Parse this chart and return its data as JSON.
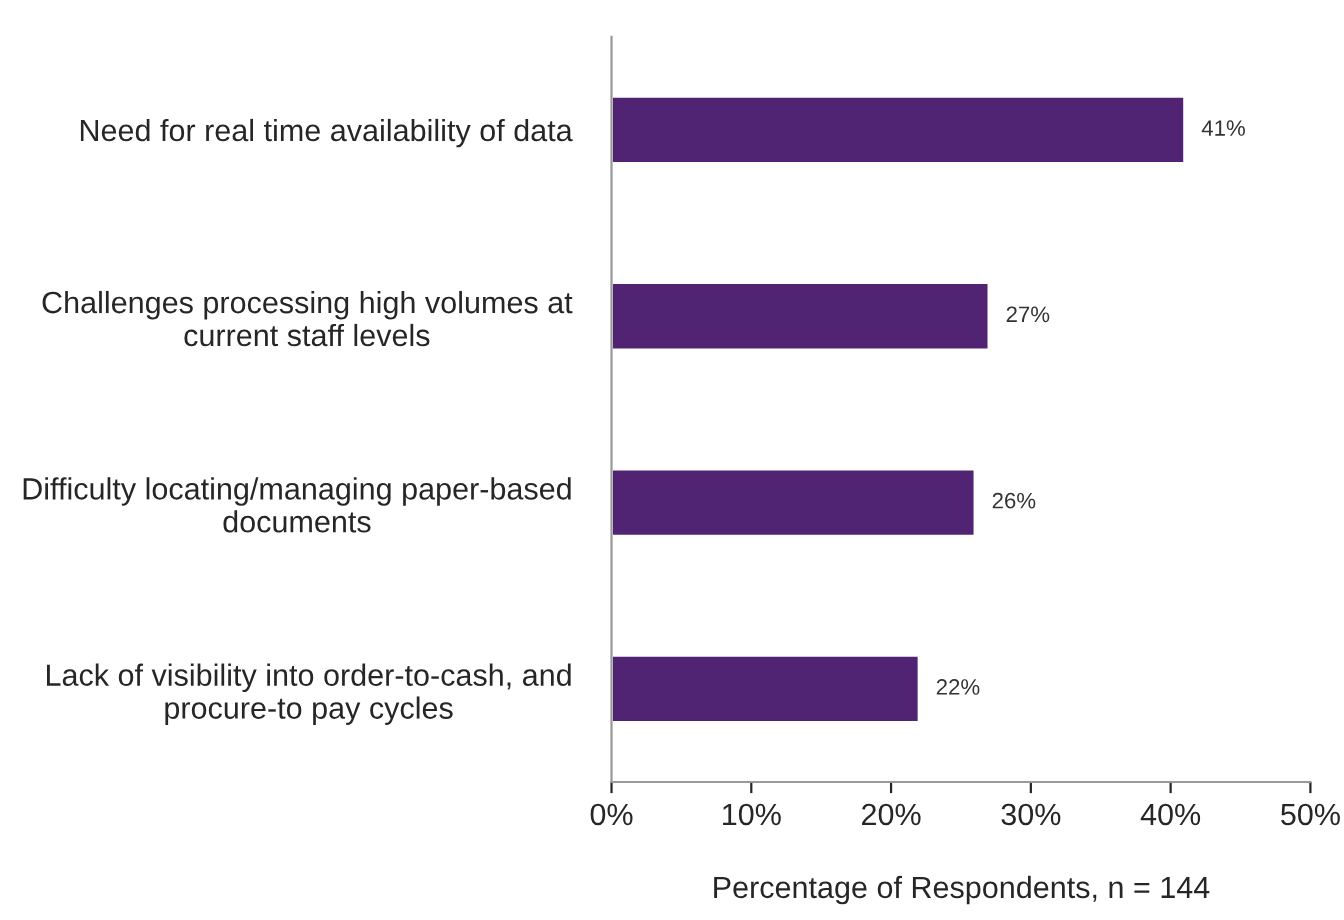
{
  "chart_data": {
    "type": "bar",
    "orientation": "horizontal",
    "xlabel": "Percentage of Respondents, n = 144",
    "categories": [
      "Need for real time availability of data",
      "Challenges processing high volumes at\ncurrent staff levels",
      "Difficulty locating/managing paper-based\ndocuments",
      "Lack of visibility into order-to-cash, and\nprocure-to pay cycles"
    ],
    "values": [
      41,
      27,
      26,
      22
    ],
    "value_labels": [
      "41%",
      "27%",
      "26%",
      "22%"
    ],
    "color": "#512373",
    "xlim": [
      0,
      50
    ],
    "xticks": [
      {
        "value": 0,
        "label": "0%"
      },
      {
        "value": 10,
        "label": "10%"
      },
      {
        "value": 20,
        "label": "20%"
      },
      {
        "value": 30,
        "label": "30%"
      },
      {
        "value": 40,
        "label": "40%"
      },
      {
        "value": 50,
        "label": "50%"
      }
    ],
    "grid": false,
    "legend": false
  }
}
